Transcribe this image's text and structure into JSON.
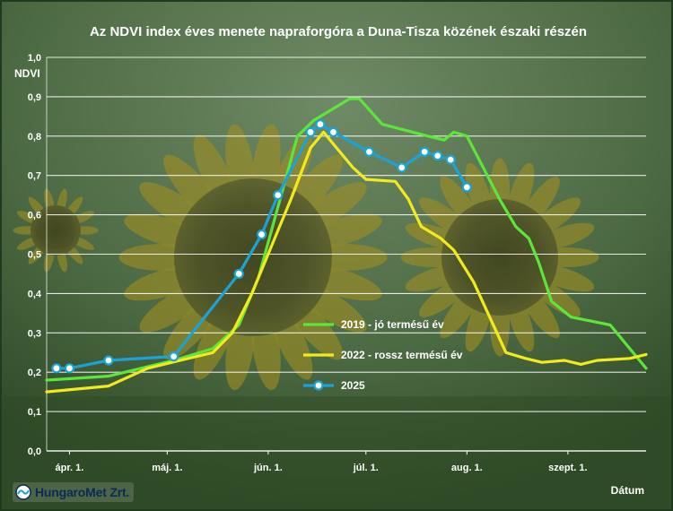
{
  "colors": {
    "background": "#3d5a34",
    "title_text": "#ffffff",
    "grid": "#ffffff",
    "axis_text": "#ffffff",
    "series_2019": "#5ce63a",
    "series_2022": "#f2ea1c",
    "series_2025": "#1ba3d8",
    "marker_fill": "#ffffff",
    "logo_text": "#0b2a55"
  },
  "logo": {
    "text": "HungaroMet Zrt.",
    "icon": "hungaromet-logo-icon"
  },
  "chart_data": {
    "type": "line",
    "title": "Az NDVI index éves menete napraforgóra a Duna-Tisza közének északi részén",
    "ylabel": "NDVI",
    "xlabel": "Dátum",
    "ylim": [
      0,
      1
    ],
    "yticks": [
      0.0,
      0.1,
      0.2,
      0.3,
      0.4,
      0.5,
      0.6,
      0.7,
      0.8,
      0.9,
      1.0
    ],
    "ytick_labels": [
      "0,0",
      "0,1",
      "0,2",
      "0,3",
      "0,4",
      "0,5",
      "0,6",
      "0,7",
      "0,8",
      "0,9",
      "1,0"
    ],
    "xlim_day": [
      -7,
      177
    ],
    "xticks": [
      {
        "day": 0,
        "label": "ápr. 1."
      },
      {
        "day": 30,
        "label": "máj. 1."
      },
      {
        "day": 61,
        "label": "jún. 1."
      },
      {
        "day": 91,
        "label": "júl. 1."
      },
      {
        "day": 122,
        "label": "aug. 1."
      },
      {
        "day": 153,
        "label": "szept. 1."
      }
    ],
    "grid": true,
    "legend_position": "center-right",
    "series": [
      {
        "name": "2019 - jó termésű év",
        "markers": false,
        "points": [
          [
            -7,
            0.18
          ],
          [
            12,
            0.19
          ],
          [
            32,
            0.23
          ],
          [
            44,
            0.26
          ],
          [
            52,
            0.32
          ],
          [
            58,
            0.44
          ],
          [
            64,
            0.62
          ],
          [
            70,
            0.8
          ],
          [
            75,
            0.84
          ],
          [
            81,
            0.87
          ],
          [
            86,
            0.895
          ],
          [
            89,
            0.895
          ],
          [
            96,
            0.83
          ],
          [
            103,
            0.815
          ],
          [
            110,
            0.8
          ],
          [
            115,
            0.79
          ],
          [
            118,
            0.81
          ],
          [
            122,
            0.8
          ],
          [
            127,
            0.72
          ],
          [
            132,
            0.64
          ],
          [
            137,
            0.57
          ],
          [
            141,
            0.54
          ],
          [
            144,
            0.48
          ],
          [
            148,
            0.38
          ],
          [
            154,
            0.34
          ],
          [
            160,
            0.33
          ],
          [
            166,
            0.32
          ],
          [
            171,
            0.27
          ],
          [
            177,
            0.21
          ]
        ]
      },
      {
        "name": "2022 - rossz termésű év",
        "markers": false,
        "points": [
          [
            -7,
            0.15
          ],
          [
            12,
            0.165
          ],
          [
            24,
            0.21
          ],
          [
            34,
            0.23
          ],
          [
            44,
            0.25
          ],
          [
            50,
            0.3
          ],
          [
            56,
            0.4
          ],
          [
            62,
            0.52
          ],
          [
            68,
            0.64
          ],
          [
            74,
            0.77
          ],
          [
            78,
            0.81
          ],
          [
            83,
            0.76
          ],
          [
            87,
            0.72
          ],
          [
            91,
            0.69
          ],
          [
            100,
            0.685
          ],
          [
            104,
            0.64
          ],
          [
            108,
            0.57
          ],
          [
            114,
            0.54
          ],
          [
            118,
            0.51
          ],
          [
            124,
            0.43
          ],
          [
            129,
            0.34
          ],
          [
            134,
            0.25
          ],
          [
            140,
            0.235
          ],
          [
            145,
            0.225
          ],
          [
            152,
            0.23
          ],
          [
            157,
            0.22
          ],
          [
            162,
            0.23
          ],
          [
            172,
            0.235
          ],
          [
            177,
            0.245
          ]
        ]
      },
      {
        "name": "2025",
        "markers": true,
        "points": [
          [
            -4,
            0.21
          ],
          [
            0,
            0.21
          ],
          [
            12,
            0.23
          ],
          [
            32,
            0.24
          ],
          [
            52,
            0.45
          ],
          [
            59,
            0.55
          ],
          [
            64,
            0.65
          ],
          [
            74,
            0.81
          ],
          [
            77,
            0.83
          ],
          [
            81,
            0.81
          ],
          [
            92,
            0.76
          ],
          [
            102,
            0.72
          ],
          [
            109,
            0.76
          ],
          [
            113,
            0.75
          ],
          [
            117,
            0.74
          ],
          [
            122,
            0.67
          ]
        ]
      }
    ]
  }
}
